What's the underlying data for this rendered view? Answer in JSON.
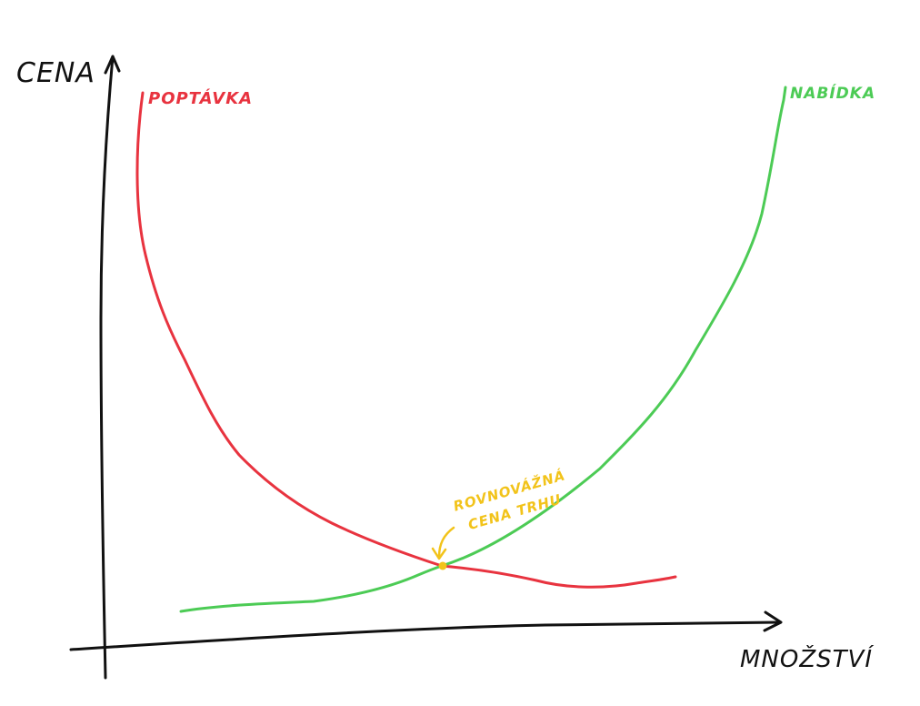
{
  "labels": {
    "y_axis": "CENA",
    "x_axis": "MNOŽSTVÍ",
    "demand": "POPTÁVKA",
    "supply": "NABÍDKA",
    "equilibrium_line1": "ROVNOVÁŽNÁ",
    "equilibrium_line2": "CENA TRHU"
  },
  "colors": {
    "axes": "#111111",
    "demand": "#e8333f",
    "supply": "#4ccb55",
    "equilibrium": "#f2c31a"
  }
}
